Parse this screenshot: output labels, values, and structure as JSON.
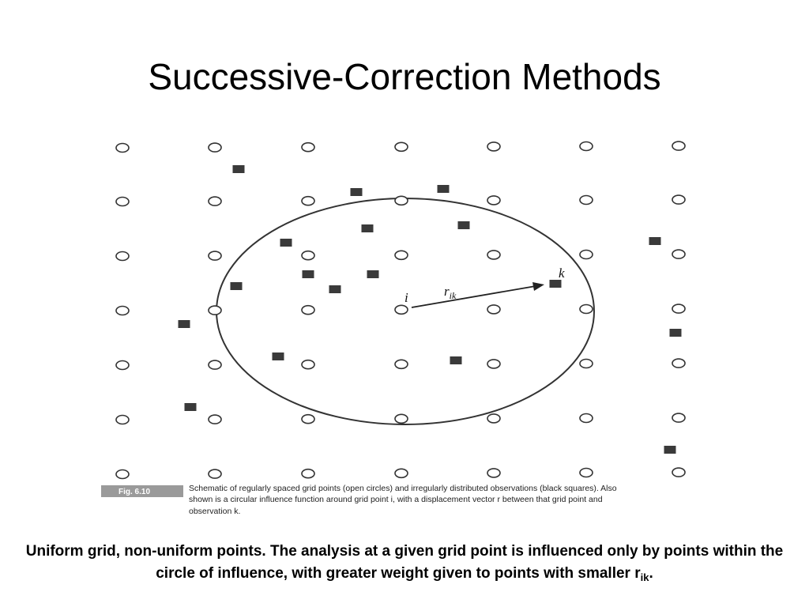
{
  "slide": {
    "title": "Successive-Correction Methods"
  },
  "figure": {
    "fig_label": "Fig. 6.10",
    "caption_lines": [
      "Schematic of regularly spaced grid points (open circles) and irregularly distributed observations (black squares). Also",
      "shown is a circular influence function around grid point i, with a displacement vector r between that grid point and",
      "observation k."
    ],
    "labels": {
      "grid_point": "i",
      "observation": "k",
      "vector": "r",
      "vector_subscript": "ik"
    }
  },
  "summary": {
    "text_main": "Uniform grid, non-uniform points. The analysis at a given grid point is influenced only by points within the circle of influence, with greater weight given to points with smaller r",
    "subscript": "ik",
    "suffix": "."
  }
}
